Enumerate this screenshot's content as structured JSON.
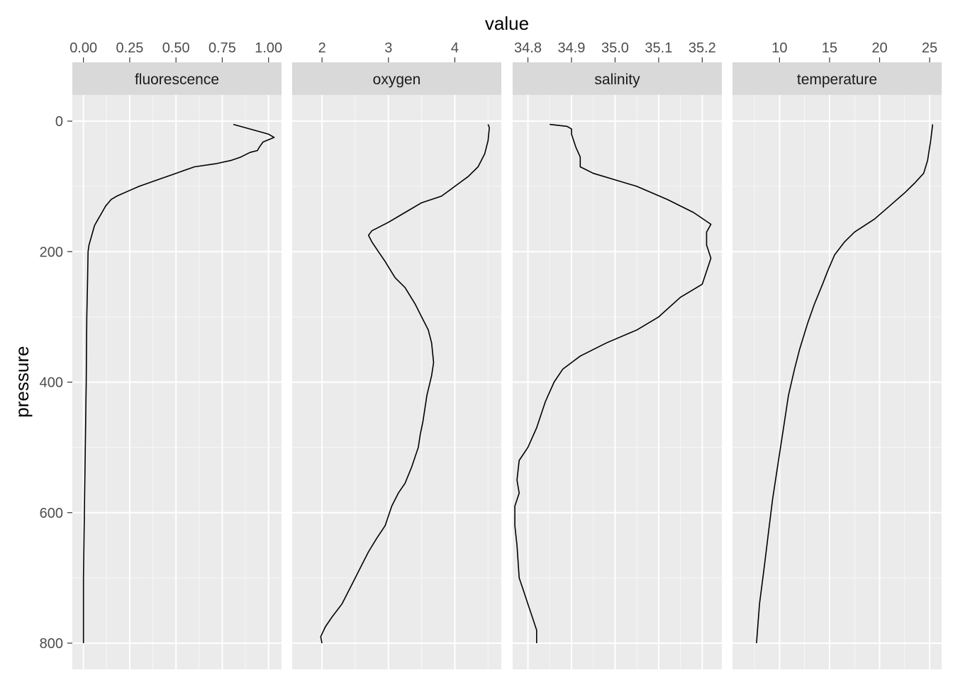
{
  "chart_data": {
    "type": "line",
    "xlabel": "value",
    "ylabel": "pressure",
    "y_reversed": true,
    "ylim": [
      850,
      -50
    ],
    "y_ticks": [
      0,
      200,
      400,
      600,
      800
    ],
    "grid": true,
    "panels": [
      {
        "name": "fluorescence",
        "xlim": [
          -0.06,
          1.07
        ],
        "x_ticks": [
          0.0,
          0.25,
          0.5,
          0.75,
          1.0
        ],
        "x_tick_labels": [
          "0.00",
          "0.25",
          "0.50",
          "0.75",
          "1.00"
        ],
        "points": [
          [
            0.81,
            5
          ],
          [
            0.9,
            12
          ],
          [
            1.0,
            20
          ],
          [
            1.03,
            25
          ],
          [
            0.97,
            32
          ],
          [
            0.95,
            40
          ],
          [
            0.94,
            45
          ],
          [
            0.9,
            48
          ],
          [
            0.85,
            55
          ],
          [
            0.8,
            60
          ],
          [
            0.72,
            65
          ],
          [
            0.6,
            70
          ],
          [
            0.5,
            80
          ],
          [
            0.4,
            90
          ],
          [
            0.3,
            100
          ],
          [
            0.26,
            105
          ],
          [
            0.18,
            115
          ],
          [
            0.15,
            120
          ],
          [
            0.12,
            130
          ],
          [
            0.1,
            140
          ],
          [
            0.08,
            150
          ],
          [
            0.06,
            160
          ],
          [
            0.05,
            170
          ],
          [
            0.04,
            180
          ],
          [
            0.03,
            190
          ],
          [
            0.025,
            200
          ],
          [
            0.022,
            250
          ],
          [
            0.018,
            300
          ],
          [
            0.015,
            400
          ],
          [
            0.01,
            500
          ],
          [
            0.005,
            600
          ],
          [
            0.0,
            700
          ],
          [
            0.0,
            800
          ]
        ]
      },
      {
        "name": "oxygen",
        "xlim": [
          1.55,
          4.7
        ],
        "x_ticks": [
          2,
          3,
          4
        ],
        "x_tick_labels": [
          "2",
          "3",
          "4"
        ],
        "points": [
          [
            4.5,
            5
          ],
          [
            4.52,
            10
          ],
          [
            4.5,
            30
          ],
          [
            4.45,
            50
          ],
          [
            4.35,
            70
          ],
          [
            4.2,
            85
          ],
          [
            4.0,
            100
          ],
          [
            3.8,
            115
          ],
          [
            3.5,
            125
          ],
          [
            3.25,
            140
          ],
          [
            3.0,
            155
          ],
          [
            2.75,
            168
          ],
          [
            2.7,
            175
          ],
          [
            2.75,
            185
          ],
          [
            2.85,
            200
          ],
          [
            2.95,
            215
          ],
          [
            3.1,
            240
          ],
          [
            3.25,
            255
          ],
          [
            3.4,
            280
          ],
          [
            3.5,
            300
          ],
          [
            3.6,
            320
          ],
          [
            3.65,
            340
          ],
          [
            3.68,
            370
          ],
          [
            3.65,
            390
          ],
          [
            3.58,
            420
          ],
          [
            3.52,
            460
          ],
          [
            3.48,
            480
          ],
          [
            3.45,
            500
          ],
          [
            3.35,
            530
          ],
          [
            3.25,
            555
          ],
          [
            3.15,
            570
          ],
          [
            3.05,
            590
          ],
          [
            2.95,
            620
          ],
          [
            2.82,
            640
          ],
          [
            2.7,
            660
          ],
          [
            2.6,
            680
          ],
          [
            2.45,
            710
          ],
          [
            2.3,
            740
          ],
          [
            2.15,
            760
          ],
          [
            2.05,
            775
          ],
          [
            1.98,
            790
          ],
          [
            2.0,
            800
          ]
        ]
      },
      {
        "name": "salinity",
        "xlim": [
          34.765,
          35.245
        ],
        "x_ticks": [
          34.8,
          34.9,
          35.0,
          35.1,
          35.2
        ],
        "x_tick_labels": [
          "34.8",
          "34.9",
          "35.0",
          "35.1",
          "35.2"
        ],
        "points": [
          [
            34.85,
            5
          ],
          [
            34.89,
            8
          ],
          [
            34.9,
            12
          ],
          [
            34.9,
            20
          ],
          [
            34.91,
            40
          ],
          [
            34.92,
            55
          ],
          [
            34.92,
            70
          ],
          [
            34.95,
            80
          ],
          [
            35.0,
            90
          ],
          [
            35.05,
            100
          ],
          [
            35.12,
            120
          ],
          [
            35.18,
            140
          ],
          [
            35.22,
            158
          ],
          [
            35.21,
            170
          ],
          [
            35.21,
            190
          ],
          [
            35.22,
            210
          ],
          [
            35.21,
            230
          ],
          [
            35.2,
            250
          ],
          [
            35.15,
            270
          ],
          [
            35.1,
            300
          ],
          [
            35.05,
            320
          ],
          [
            34.98,
            340
          ],
          [
            34.92,
            360
          ],
          [
            34.88,
            380
          ],
          [
            34.86,
            400
          ],
          [
            34.84,
            430
          ],
          [
            34.82,
            470
          ],
          [
            34.8,
            500
          ],
          [
            34.78,
            520
          ],
          [
            34.775,
            550
          ],
          [
            34.78,
            570
          ],
          [
            34.77,
            590
          ],
          [
            34.77,
            620
          ],
          [
            34.775,
            650
          ],
          [
            34.78,
            700
          ],
          [
            34.79,
            720
          ],
          [
            34.8,
            740
          ],
          [
            34.81,
            760
          ],
          [
            34.82,
            780
          ],
          [
            34.82,
            800
          ]
        ]
      },
      {
        "name": "temperature",
        "xlim": [
          5.3,
          26.2
        ],
        "x_ticks": [
          10,
          15,
          20,
          25
        ],
        "x_tick_labels": [
          "10",
          "15",
          "20",
          "25"
        ],
        "points": [
          [
            25.3,
            5
          ],
          [
            25.1,
            30
          ],
          [
            24.8,
            60
          ],
          [
            24.4,
            80
          ],
          [
            23.5,
            95
          ],
          [
            22.5,
            110
          ],
          [
            21.0,
            130
          ],
          [
            19.5,
            150
          ],
          [
            17.5,
            170
          ],
          [
            16.5,
            185
          ],
          [
            15.5,
            205
          ],
          [
            14.8,
            230
          ],
          [
            14.3,
            250
          ],
          [
            13.5,
            280
          ],
          [
            12.8,
            310
          ],
          [
            12.0,
            350
          ],
          [
            11.5,
            380
          ],
          [
            10.9,
            420
          ],
          [
            10.4,
            470
          ],
          [
            9.9,
            520
          ],
          [
            9.3,
            580
          ],
          [
            8.9,
            630
          ],
          [
            8.5,
            680
          ],
          [
            8.0,
            740
          ],
          [
            7.7,
            800
          ]
        ]
      }
    ]
  }
}
